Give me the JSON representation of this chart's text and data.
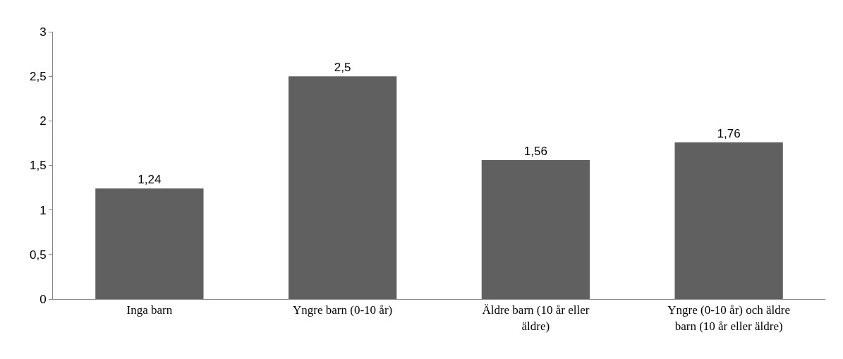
{
  "chart_data": {
    "type": "bar",
    "categories": [
      "Inga barn",
      "Yngre barn (0-10 år)",
      "Äldre barn (10 år eller äldre)",
      "Yngre (0-10 år) och äldre barn (10 år eller äldre)"
    ],
    "values": [
      1.24,
      2.5,
      1.56,
      1.76
    ],
    "value_labels": [
      "1,24",
      "2,5",
      "1,56",
      "1,76"
    ],
    "color": "#606060",
    "ylim": [
      0,
      3
    ],
    "yticks": [
      0,
      {
        "value": 0.5,
        "label": "0,5"
      },
      1,
      {
        "value": 1.5,
        "label": "1,5"
      },
      2,
      {
        "value": 2.5,
        "label": "2,5"
      },
      3
    ],
    "legend": false
  }
}
